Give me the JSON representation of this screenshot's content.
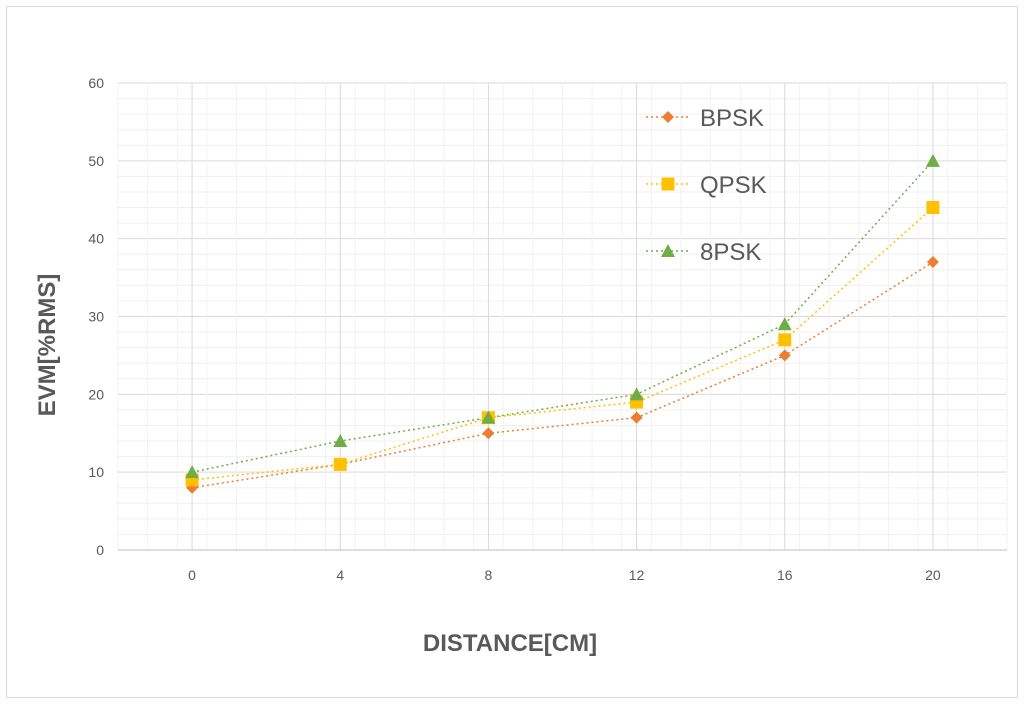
{
  "chart_data": {
    "type": "line",
    "title": "",
    "xlabel": "DISTANCE[CM]",
    "ylabel": "EVM[%RMS]",
    "x": [
      0,
      4,
      8,
      12,
      16,
      20
    ],
    "ylim": [
      0,
      60
    ],
    "yticks": [
      0,
      10,
      20,
      30,
      40,
      50,
      60
    ],
    "grid": true,
    "legend_position": "top-right",
    "series": [
      {
        "name": "BPSK",
        "values": [
          8,
          11,
          15,
          17,
          25,
          37
        ],
        "color": "#ED7D31",
        "marker": "diamond",
        "line_style": "dotted"
      },
      {
        "name": "QPSK",
        "values": [
          9,
          11,
          17,
          19,
          27,
          44
        ],
        "color": "#FFC000",
        "marker": "square",
        "line_style": "dotted"
      },
      {
        "name": "8PSK",
        "values": [
          10,
          14,
          17,
          20,
          29,
          50
        ],
        "color": "#70AD47",
        "marker": "triangle",
        "line_style": "dotted"
      }
    ]
  }
}
